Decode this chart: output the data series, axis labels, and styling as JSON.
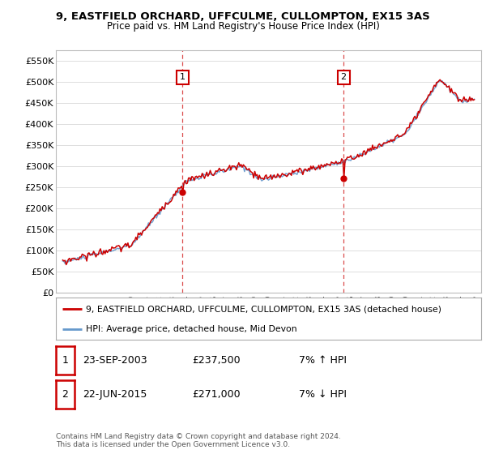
{
  "title": "9, EASTFIELD ORCHARD, UFFCULME, CULLOMPTON, EX15 3AS",
  "subtitle": "Price paid vs. HM Land Registry's House Price Index (HPI)",
  "legend_line1": "9, EASTFIELD ORCHARD, UFFCULME, CULLOMPTON, EX15 3AS (detached house)",
  "legend_line2": "HPI: Average price, detached house, Mid Devon",
  "footnote": "Contains HM Land Registry data © Crown copyright and database right 2024.\nThis data is licensed under the Open Government Licence v3.0.",
  "table": [
    {
      "num": "1",
      "date": "23-SEP-2003",
      "price": "£237,500",
      "hpi": "7% ↑ HPI"
    },
    {
      "num": "2",
      "date": "22-JUN-2015",
      "price": "£271,000",
      "hpi": "7% ↓ HPI"
    }
  ],
  "ylim": [
    0,
    575000
  ],
  "yticks": [
    0,
    50000,
    100000,
    150000,
    200000,
    250000,
    300000,
    350000,
    400000,
    450000,
    500000,
    550000
  ],
  "ytick_labels": [
    "£0",
    "£50K",
    "£100K",
    "£150K",
    "£200K",
    "£250K",
    "£300K",
    "£350K",
    "£400K",
    "£450K",
    "£500K",
    "£550K"
  ],
  "marker1_x": 2003.73,
  "marker1_y": 237500,
  "marker2_x": 2015.47,
  "marker2_y": 271000,
  "vline1_x": 2003.73,
  "vline2_x": 2015.47,
  "red_color": "#cc0000",
  "blue_color": "#6699cc",
  "bg_color": "#ffffff",
  "grid_color": "#dddddd",
  "xlim_left": 1994.5,
  "xlim_right": 2025.5,
  "hpi_seed": 10,
  "prop_seed": 20
}
